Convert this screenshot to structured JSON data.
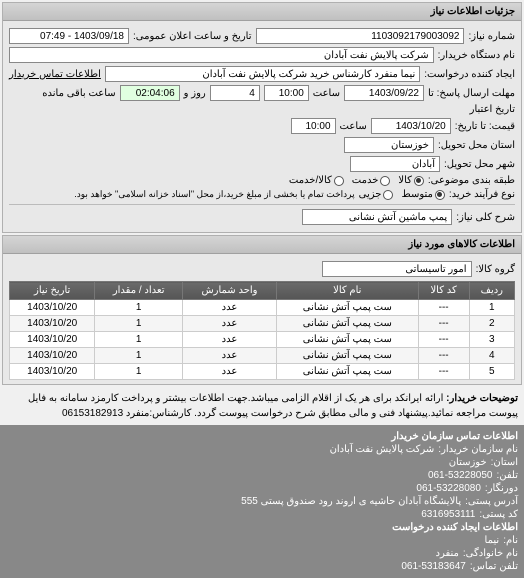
{
  "header": {
    "title": "جزئیات اطلاعات نیاز"
  },
  "request": {
    "number_label": "شماره نیاز:",
    "number": "1103092179003092",
    "announce_label": "تاریخ و ساعت اعلان عمومی:",
    "announce": "1403/09/18 - 07:49",
    "buyer_label": "نام دستگاه خریدار:",
    "buyer": "شرکت پالایش نفت آبادان",
    "creator_label": "ایجاد کننده درخواست:",
    "creator": "نیما منفرد کارشناس خرید شرکت پالایش نفت آبادان",
    "buyer_contact_label": "اطلاعات تماس خریدار",
    "deadline_send_label": "مهلت ارسال پاسخ: تا",
    "deadline_send_date": "1403/09/22",
    "time_label": "ساعت",
    "deadline_send_time": "10:00",
    "days_label": "روز و",
    "days": "4",
    "remain_label": "ساعت باقی مانده",
    "remain": "02:04:06",
    "validity_from_label": "تاریخ اعتبار",
    "validity_to_label": "قیمت: تا تاریخ:",
    "validity_to_date": "1403/10/20",
    "validity_to_time": "10:00",
    "province_label": "استان محل تحویل:",
    "province": "خوزستان",
    "city_label": "شهر محل تحویل:",
    "city": "آبادان",
    "subject_class_label": "طبقه بندی موضوعی:",
    "radio_goods": "کالا",
    "radio_service": "خدمت",
    "radio_goods_service": "کالا/خدمت",
    "process_label": "نوع فرآیند خرید:",
    "radio_small": "متوسط",
    "radio_partial": "جزیی",
    "process_note": "پرداخت تمام یا بخشی از مبلغ خرید،از محل \"اسناد خزانه اسلامی\" خواهد بود."
  },
  "need": {
    "title_label": "شرح کلی نیاز:",
    "title": "پمپ ماشین آتش نشانی"
  },
  "goods": {
    "header": "اطلاعات کالاهای مورد نیاز",
    "group_label": "گروه کالا:",
    "group": "امور تاسیساتی",
    "columns": [
      "ردیف",
      "کد کالا",
      "نام کالا",
      "واحد شمارش",
      "تعداد / مقدار",
      "تاریخ نیاز"
    ],
    "rows": [
      [
        "1",
        "---",
        "ست پمپ آتش نشانی",
        "عدد",
        "1",
        "1403/10/20"
      ],
      [
        "2",
        "---",
        "ست پمپ آتش نشانی",
        "عدد",
        "1",
        "1403/10/20"
      ],
      [
        "3",
        "---",
        "ست پمپ آتش نشانی",
        "عدد",
        "1",
        "1403/10/20"
      ],
      [
        "4",
        "---",
        "ست پمپ آتش نشانی",
        "عدد",
        "1",
        "1403/10/20"
      ],
      [
        "5",
        "---",
        "ست پمپ آتش نشانی",
        "عدد",
        "1",
        "1403/10/20"
      ]
    ]
  },
  "note": {
    "label": "توضیحات خریدار:",
    "text": "ارائه ایرانکد برای هر یک از اقلام الزامی میباشد.جهت اطلاعات بیشتر و پرداخت کارمزد سامانه به فایل پیوست مراجعه نمائید.پیشنهاد فنی و مالی مطابق شرح درخواست پیوست گردد. کارشناس:منفرد 06153182913"
  },
  "contact": {
    "header": "اطلاعات تماس سازمان خریدار",
    "org_label": "نام سازمان خریدار:",
    "org": "شرکت پالایش نفت آبادان",
    "province_label": "استان:",
    "province": "خوزستان",
    "phone_label": "تلفن:",
    "phone": "061-53228050",
    "fax_label": "دورنگار:",
    "fax": "061-53228080",
    "address_label": "آدرس پستی:",
    "address": "پالایشگاه آبادان حاشیه ی اروند رود صندوق پستی 555",
    "postal_label": "کد پستی:",
    "postal": "6316953111",
    "creator_header": "اطلاعات ایجاد کننده درخواست",
    "name_label": "نام:",
    "name": "نیما",
    "family_label": "نام خانوادگی:",
    "family": "منفرد",
    "tel_label": "تلفن تماس:",
    "tel": "061-53183647"
  }
}
